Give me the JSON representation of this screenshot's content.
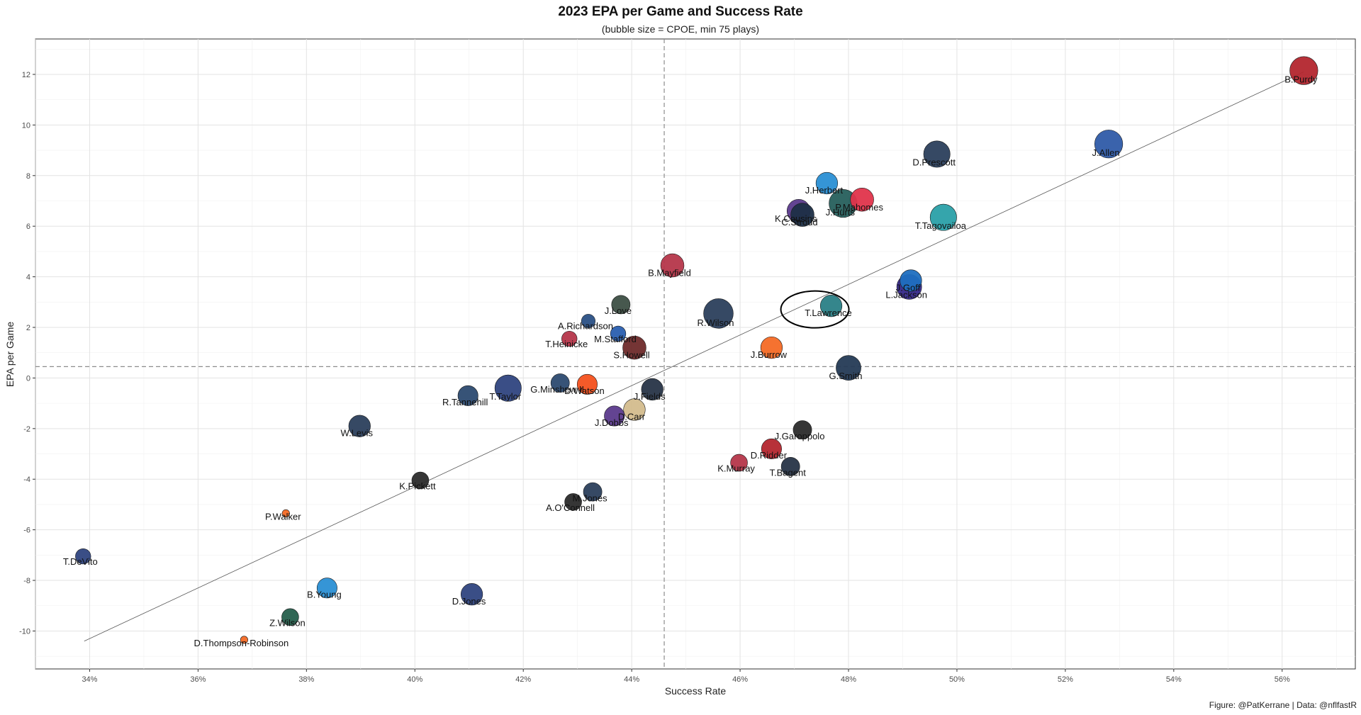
{
  "chart_data": {
    "type": "scatter",
    "title": "2023 EPA per Game and Success Rate",
    "subtitle": "(bubble size = CPOE, min 75 plays)",
    "caption": "Figure: @PatKerrane | Data: @nflfastR",
    "xlabel": "Success Rate",
    "ylabel": "EPA per Game",
    "xlim": [
      0.33,
      0.5735
    ],
    "ylim": [
      -11.5,
      13.4
    ],
    "x_ticks": [
      0.34,
      0.36,
      0.38,
      0.4,
      0.42,
      0.44,
      0.46,
      0.48,
      0.5,
      0.52,
      0.54,
      0.56
    ],
    "x_tick_labels": [
      "34%",
      "36%",
      "38%",
      "40%",
      "42%",
      "44%",
      "46%",
      "48%",
      "50%",
      "52%",
      "54%",
      "56%"
    ],
    "y_ticks": [
      -10,
      -8,
      -6,
      -4,
      -2,
      0,
      2,
      4,
      6,
      8,
      10,
      12
    ],
    "y_tick_labels": [
      "-10",
      "-8",
      "-6",
      "-4",
      "-2",
      "0",
      "2",
      "4",
      "6",
      "8",
      "10",
      "12"
    ],
    "grid": true,
    "reference_lines": {
      "x_mean": 0.446,
      "y_mean": 0.45
    },
    "trend_line": {
      "x": [
        0.339,
        0.564
      ],
      "y": [
        -10.4,
        12.1
      ]
    },
    "highlight": {
      "label": "T.Lawrence"
    },
    "points": [
      {
        "label": "B.Purdy",
        "x": 0.564,
        "y": 12.15,
        "size": 15,
        "color": "#b3262e"
      },
      {
        "label": "J.Allen",
        "x": 0.528,
        "y": 9.25,
        "size": 15,
        "color": "#2f5ba8"
      },
      {
        "label": "D.Prescott",
        "x": 0.4963,
        "y": 8.85,
        "size": 14,
        "color": "#2b3f5c"
      },
      {
        "label": "J.Herbert",
        "x": 0.476,
        "y": 7.7,
        "size": 11,
        "color": "#2a8fd4"
      },
      {
        "label": "P.Mahomes",
        "x": 0.4825,
        "y": 7.05,
        "size": 12,
        "color": "#e0344b"
      },
      {
        "label": "K.Cousins",
        "x": 0.4708,
        "y": 6.6,
        "size": 12,
        "color": "#5b3a8c"
      },
      {
        "label": "J.Hurts",
        "x": 0.479,
        "y": 6.9,
        "size": 15,
        "color": "#265f5c"
      },
      {
        "label": "C.Stroud",
        "x": 0.4715,
        "y": 6.45,
        "size": 12,
        "color": "#1e2f47"
      },
      {
        "label": "T.Tagovailoa",
        "x": 0.4975,
        "y": 6.35,
        "size": 14,
        "color": "#2aa0a8"
      },
      {
        "label": "J.Goff",
        "x": 0.4915,
        "y": 3.85,
        "size": 11,
        "color": "#1f6fc0"
      },
      {
        "label": "L.Jackson",
        "x": 0.4912,
        "y": 3.6,
        "size": 13,
        "color": "#35288a"
      },
      {
        "label": "T.Lawrence",
        "x": 0.4768,
        "y": 2.85,
        "size": 11,
        "color": "#2a7f86"
      },
      {
        "label": "B.Mayfield",
        "x": 0.4475,
        "y": 4.45,
        "size": 12,
        "color": "#b5364a"
      },
      {
        "label": "R.Wilson",
        "x": 0.456,
        "y": 2.55,
        "size": 16,
        "color": "#2b3f5c"
      },
      {
        "label": "J.Love",
        "x": 0.438,
        "y": 2.9,
        "size": 9,
        "color": "#3d4f45"
      },
      {
        "label": "A.Richardson",
        "x": 0.432,
        "y": 2.25,
        "size": 6,
        "color": "#2a5085"
      },
      {
        "label": "T.Heinicke",
        "x": 0.4285,
        "y": 1.55,
        "size": 7,
        "color": "#b5364a"
      },
      {
        "label": "M.Stafford",
        "x": 0.4375,
        "y": 1.75,
        "size": 7,
        "color": "#2a5fb0"
      },
      {
        "label": "S.Howell",
        "x": 0.4405,
        "y": 1.2,
        "size": 12,
        "color": "#6e2a2a"
      },
      {
        "label": "J.Burrow",
        "x": 0.4658,
        "y": 1.2,
        "size": 11,
        "color": "#f46a25"
      },
      {
        "label": "G.Smith",
        "x": 0.48,
        "y": 0.4,
        "size": 13,
        "color": "#243a55"
      },
      {
        "label": "T.Taylor",
        "x": 0.4172,
        "y": -0.4,
        "size": 14,
        "color": "#2f4480"
      },
      {
        "label": "G.Minshew II",
        "x": 0.4268,
        "y": -0.2,
        "size": 9,
        "color": "#2c4a70"
      },
      {
        "label": "D.Watson",
        "x": 0.4318,
        "y": -0.25,
        "size": 10,
        "color": "#f4511e"
      },
      {
        "label": "J.Fields",
        "x": 0.4438,
        "y": -0.45,
        "size": 11,
        "color": "#273447"
      },
      {
        "label": "R.Tannehill",
        "x": 0.4098,
        "y": -0.7,
        "size": 10,
        "color": "#2c4a70"
      },
      {
        "label": "D.Carr",
        "x": 0.4405,
        "y": -1.25,
        "size": 11,
        "color": "#d3bc8d"
      },
      {
        "label": "J.Dobbs",
        "x": 0.4368,
        "y": -1.5,
        "size": 10,
        "color": "#5b3a8c"
      },
      {
        "label": "W.Levis",
        "x": 0.3898,
        "y": -1.9,
        "size": 11,
        "color": "#2b3f5c"
      },
      {
        "label": "J.Garoppolo",
        "x": 0.4715,
        "y": -2.05,
        "size": 9,
        "color": "#2b2b2b"
      },
      {
        "label": "D.Ridder",
        "x": 0.4658,
        "y": -2.8,
        "size": 10,
        "color": "#b3262e"
      },
      {
        "label": "K.Murray",
        "x": 0.4598,
        "y": -3.35,
        "size": 8,
        "color": "#b5364a"
      },
      {
        "label": "T.Bagent",
        "x": 0.4693,
        "y": -3.5,
        "size": 9,
        "color": "#273447"
      },
      {
        "label": "K.Pickett",
        "x": 0.401,
        "y": -4.05,
        "size": 8,
        "color": "#2b2b2b"
      },
      {
        "label": "M.Jones",
        "x": 0.4328,
        "y": -4.5,
        "size": 9,
        "color": "#2b3f5c"
      },
      {
        "label": "A.O'Connell",
        "x": 0.4292,
        "y": -4.9,
        "size": 8,
        "color": "#2b2b2b"
      },
      {
        "label": "P.Walker",
        "x": 0.3762,
        "y": -5.35,
        "size": 2,
        "color": "#f46a25"
      },
      {
        "label": "T.DeVito",
        "x": 0.3388,
        "y": -7.05,
        "size": 7,
        "color": "#2f4480"
      },
      {
        "label": "B.Young",
        "x": 0.3838,
        "y": -8.3,
        "size": 10,
        "color": "#2a8fd4"
      },
      {
        "label": "D.Jones",
        "x": 0.4105,
        "y": -8.55,
        "size": 11,
        "color": "#2f4480"
      },
      {
        "label": "Z.Wilson",
        "x": 0.377,
        "y": -9.45,
        "size": 8,
        "color": "#265f4c"
      },
      {
        "label": "D.Thompson-Robinson",
        "x": 0.3685,
        "y": -10.35,
        "size": 2,
        "color": "#f46a25"
      }
    ]
  }
}
